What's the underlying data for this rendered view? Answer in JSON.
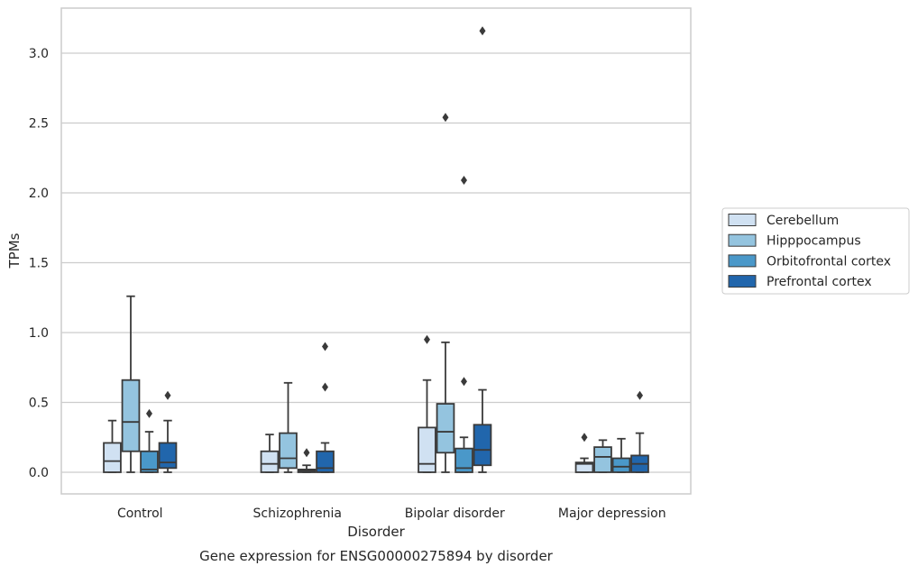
{
  "chart_data": {
    "type": "box",
    "title": "",
    "caption": "Gene expression for ENSG00000275894 by disorder",
    "xlabel": "Disorder",
    "ylabel": "TPMs",
    "ylim": [
      -0.15,
      3.35
    ],
    "yticks": [
      "0.0",
      "0.5",
      "1.0",
      "1.5",
      "2.0",
      "2.5",
      "3.0"
    ],
    "grid": "horizontal",
    "legend_position": "right",
    "categories": [
      "Control",
      "Schizophrenia",
      "Bipolar disorder",
      "Major depression"
    ],
    "series": [
      {
        "name": "Cerebellum",
        "color": "#d0e1f2",
        "boxes": [
          {
            "whisker_low": 0.0,
            "q1": 0.0,
            "median": 0.08,
            "q3": 0.21,
            "whisker_high": 0.37,
            "outliers": []
          },
          {
            "whisker_low": 0.0,
            "q1": 0.0,
            "median": 0.06,
            "q3": 0.15,
            "whisker_high": 0.27,
            "outliers": []
          },
          {
            "whisker_low": 0.0,
            "q1": 0.0,
            "median": 0.06,
            "q3": 0.32,
            "whisker_high": 0.66,
            "outliers": [
              0.95
            ]
          },
          {
            "whisker_low": 0.0,
            "q1": 0.0,
            "median": 0.06,
            "q3": 0.07,
            "whisker_high": 0.1,
            "outliers": [
              0.25
            ]
          }
        ]
      },
      {
        "name": "Hipppocampus",
        "color": "#94c4df",
        "boxes": [
          {
            "whisker_low": 0.0,
            "q1": 0.15,
            "median": 0.36,
            "q3": 0.66,
            "whisker_high": 1.26,
            "outliers": []
          },
          {
            "whisker_low": 0.0,
            "q1": 0.03,
            "median": 0.1,
            "q3": 0.28,
            "whisker_high": 0.64,
            "outliers": []
          },
          {
            "whisker_low": 0.0,
            "q1": 0.14,
            "median": 0.29,
            "q3": 0.49,
            "whisker_high": 0.93,
            "outliers": [
              2.54
            ]
          },
          {
            "whisker_low": 0.0,
            "q1": 0.0,
            "median": 0.11,
            "q3": 0.18,
            "whisker_high": 0.23,
            "outliers": []
          }
        ]
      },
      {
        "name": "Orbitofrontal cortex",
        "color": "#4a98c9",
        "boxes": [
          {
            "whisker_low": 0.0,
            "q1": 0.0,
            "median": 0.02,
            "q3": 0.15,
            "whisker_high": 0.29,
            "outliers": [
              0.42
            ]
          },
          {
            "whisker_low": 0.0,
            "q1": 0.0,
            "median": 0.01,
            "q3": 0.02,
            "whisker_high": 0.05,
            "outliers": [
              0.14
            ]
          },
          {
            "whisker_low": 0.0,
            "q1": 0.0,
            "median": 0.03,
            "q3": 0.17,
            "whisker_high": 0.25,
            "outliers": [
              0.65,
              2.09
            ]
          },
          {
            "whisker_low": 0.0,
            "q1": 0.0,
            "median": 0.04,
            "q3": 0.1,
            "whisker_high": 0.24,
            "outliers": []
          }
        ]
      },
      {
        "name": "Prefrontal cortex",
        "color": "#2166ac",
        "boxes": [
          {
            "whisker_low": 0.0,
            "q1": 0.03,
            "median": 0.07,
            "q3": 0.21,
            "whisker_high": 0.37,
            "outliers": [
              0.55
            ]
          },
          {
            "whisker_low": 0.0,
            "q1": 0.0,
            "median": 0.03,
            "q3": 0.15,
            "whisker_high": 0.21,
            "outliers": [
              0.61,
              0.9
            ]
          },
          {
            "whisker_low": 0.0,
            "q1": 0.05,
            "median": 0.16,
            "q3": 0.34,
            "whisker_high": 0.59,
            "outliers": [
              3.16
            ]
          },
          {
            "whisker_low": 0.0,
            "q1": 0.0,
            "median": 0.06,
            "q3": 0.12,
            "whisker_high": 0.28,
            "outliers": [
              0.55
            ]
          }
        ]
      }
    ]
  }
}
